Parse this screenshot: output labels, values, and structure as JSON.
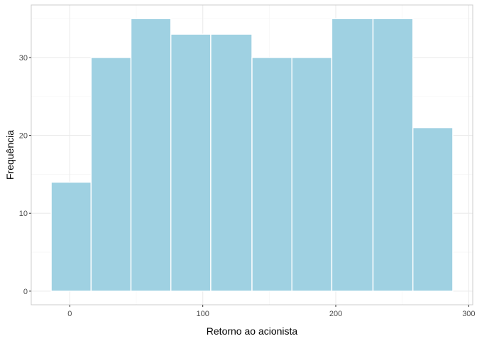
{
  "chart_data": {
    "type": "bar",
    "subtype": "histogram",
    "title": "",
    "xlabel": "Retorno ao acionista",
    "ylabel": "Frequência",
    "bins": [
      {
        "x_start": -14,
        "x_end": 16,
        "count": 14
      },
      {
        "x_start": 16,
        "x_end": 46,
        "count": 30
      },
      {
        "x_start": 46,
        "x_end": 76,
        "count": 35
      },
      {
        "x_start": 76,
        "x_end": 106,
        "count": 33
      },
      {
        "x_start": 106,
        "x_end": 137,
        "count": 33
      },
      {
        "x_start": 137,
        "x_end": 167,
        "count": 30
      },
      {
        "x_start": 167,
        "x_end": 197,
        "count": 30
      },
      {
        "x_start": 197,
        "x_end": 228,
        "count": 35
      },
      {
        "x_start": 228,
        "x_end": 258,
        "count": 35
      },
      {
        "x_start": 258,
        "x_end": 288,
        "count": 21
      }
    ],
    "xlim": [
      -29,
      303
    ],
    "ylim": [
      -1.75,
      36.75
    ],
    "x_ticks": [
      0,
      100,
      200,
      300
    ],
    "y_ticks": [
      0,
      10,
      20,
      30
    ],
    "grid": true,
    "colors": {
      "bar_fill": "#9fd1e2",
      "bar_stroke": "#ffffff",
      "grid_major": "#ebebeb",
      "grid_minor": "#f5f5f5",
      "panel_border": "#cccccc"
    }
  }
}
